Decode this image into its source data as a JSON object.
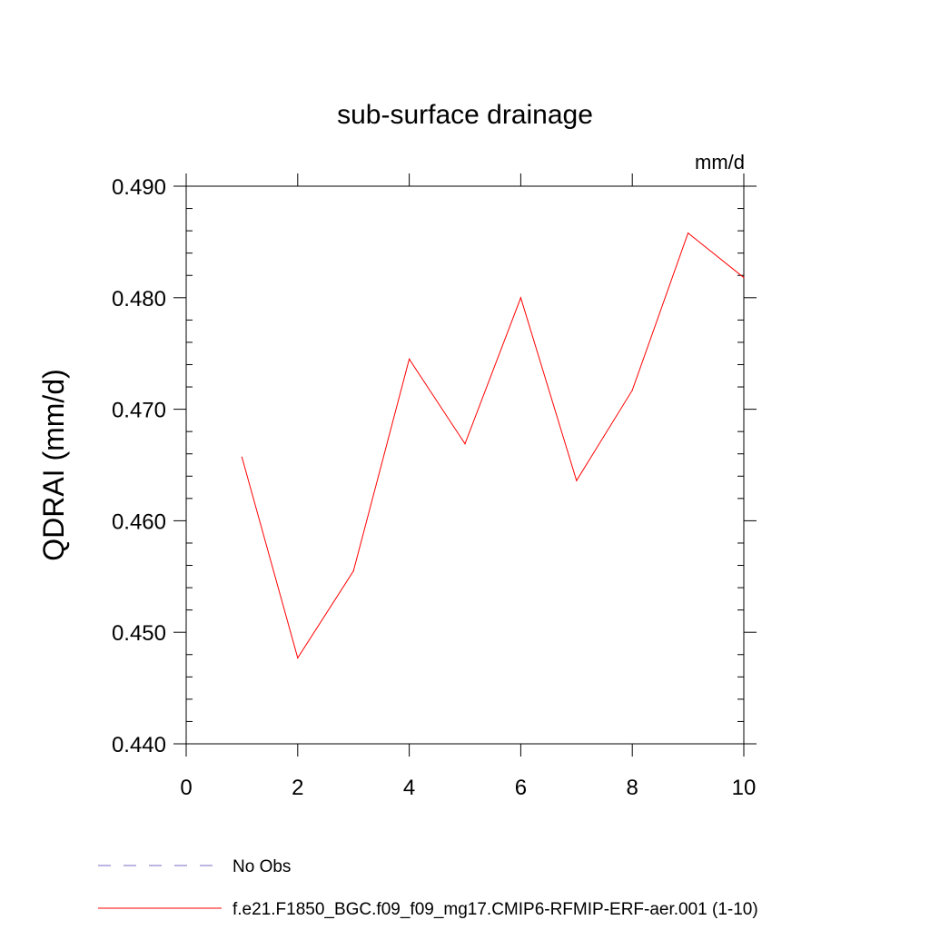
{
  "chart_data": {
    "type": "line",
    "title": "sub-surface drainage",
    "units": "mm/d",
    "ylabel": "QDRAI  (mm/d)",
    "xlabel": "",
    "xlim": [
      0,
      10
    ],
    "ylim": [
      0.44,
      0.49
    ],
    "xticks": [
      0,
      2,
      4,
      6,
      8,
      10
    ],
    "xtick_labels": [
      "0",
      "2",
      "4",
      "6",
      "8",
      "10"
    ],
    "yticks": [
      0.44,
      0.45,
      0.46,
      0.47,
      0.48,
      0.49
    ],
    "ytick_labels": [
      "0.440",
      "0.450",
      "0.460",
      "0.470",
      "0.480",
      "0.490"
    ],
    "grid": false,
    "legend_position": "bottom",
    "series": [
      {
        "name": "f.e21.F1850_BGC.f09_f09_mg17.CMIP6-RFMIP-ERF-aer.001 (1-10)",
        "color": "#ff0000",
        "style": "solid",
        "x": [
          1,
          2,
          3,
          4,
          5,
          6,
          7,
          8,
          9,
          10
        ],
        "y": [
          0.4657,
          0.4477,
          0.4555,
          0.4745,
          0.4669,
          0.48,
          0.4636,
          0.4717,
          0.4858,
          0.4818
        ]
      }
    ],
    "legend": [
      {
        "label": "No Obs",
        "color": "#7b68c8",
        "style": "dashed"
      },
      {
        "label": "f.e21.F1850_BGC.f09_f09_mg17.CMIP6-RFMIP-ERF-aer.001 (1-10)",
        "color": "#ff0000",
        "style": "solid"
      }
    ]
  }
}
